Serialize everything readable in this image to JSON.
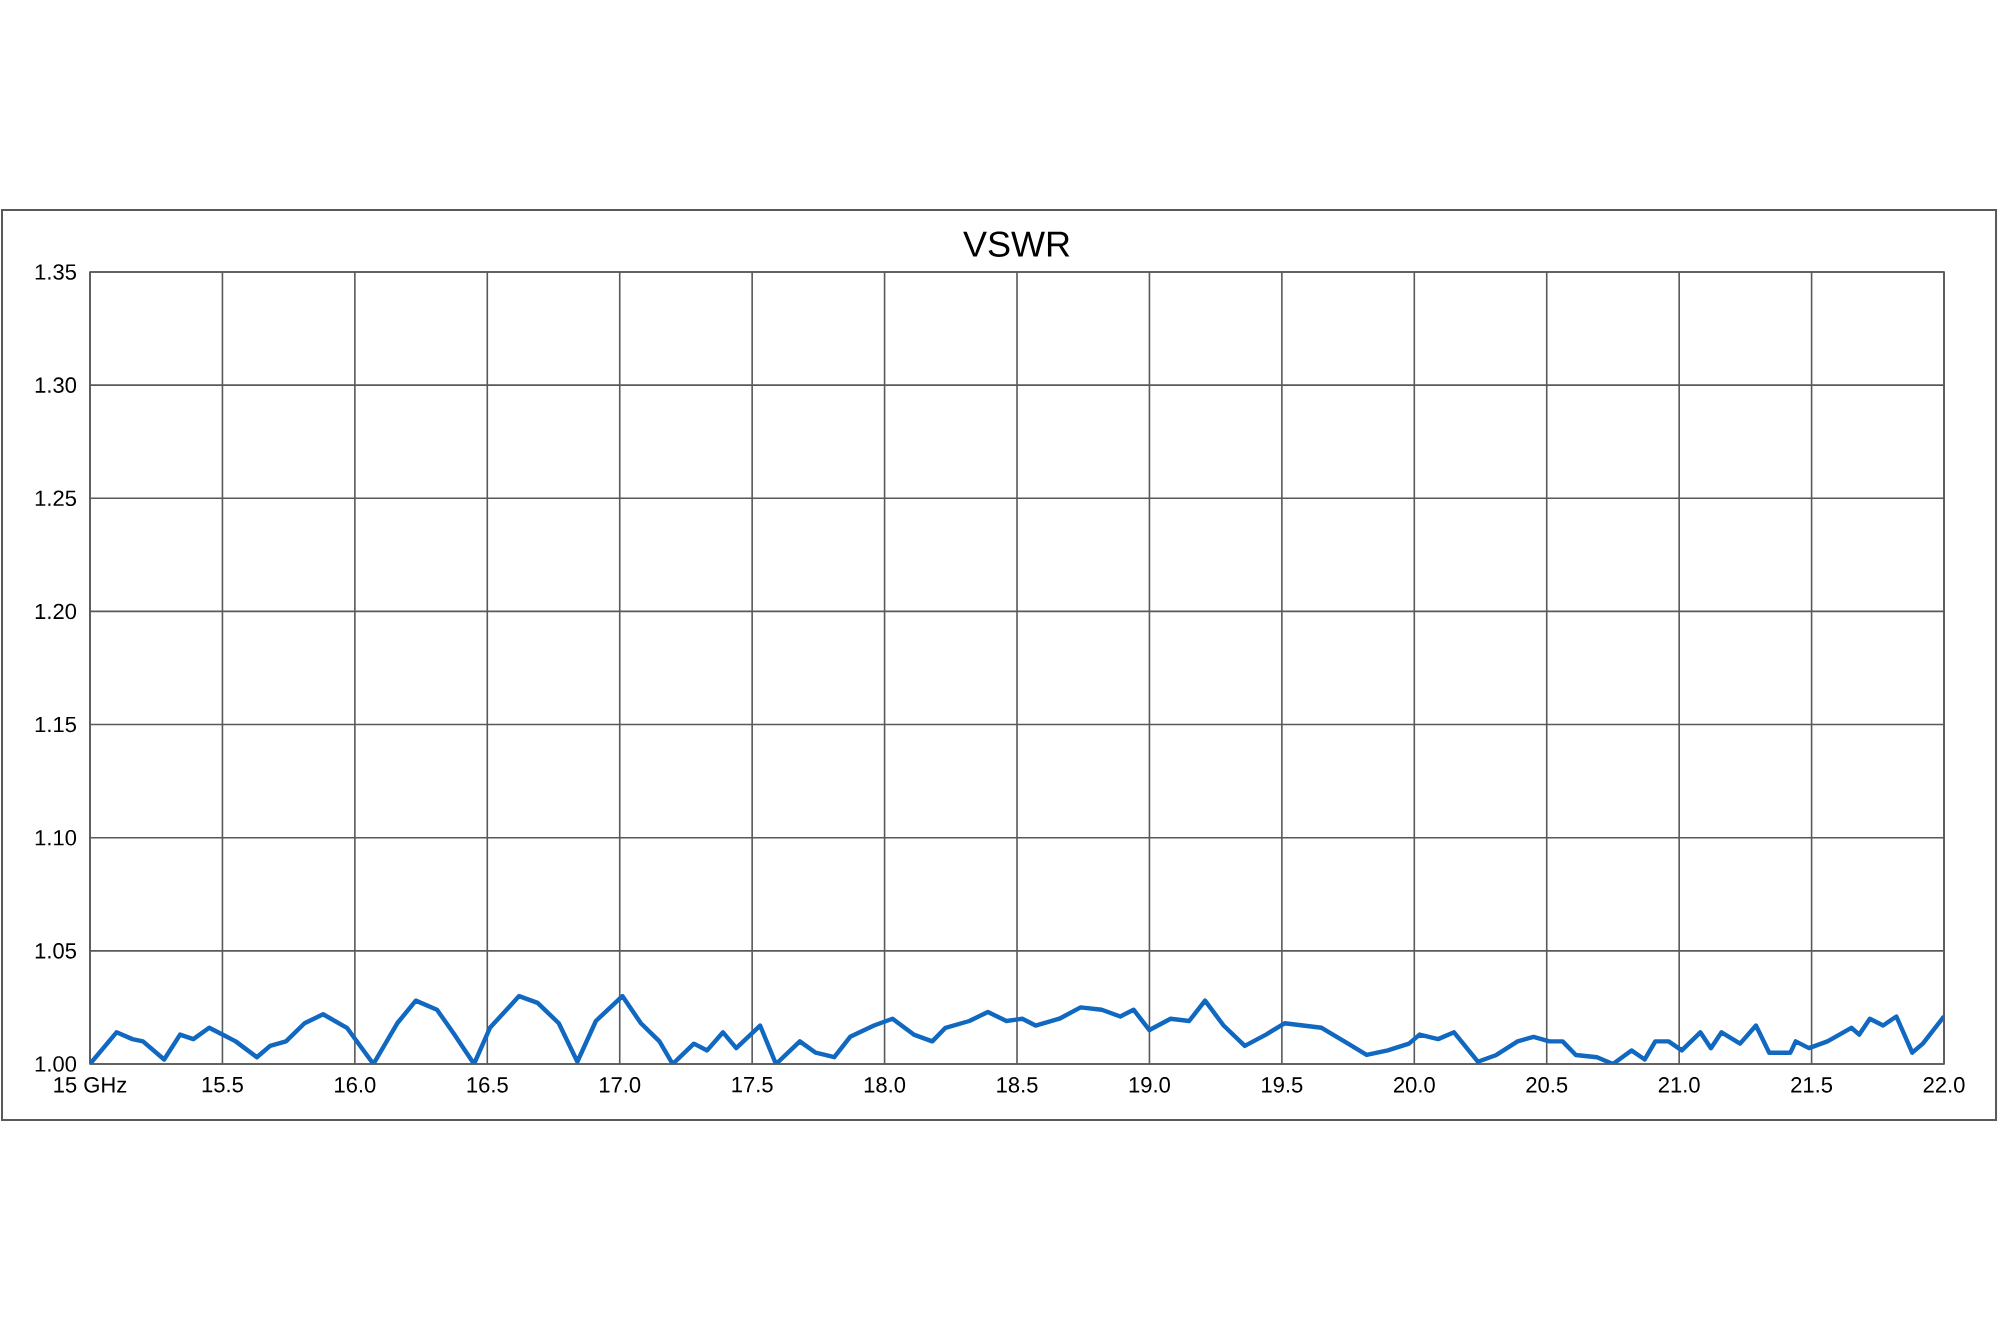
{
  "chart_data": {
    "type": "line",
    "title": "VSWR",
    "color": "#1068c0",
    "marker": "none",
    "line_style": "solid",
    "grid": true,
    "xlim": [
      15,
      22
    ],
    "ylim": [
      1.0,
      1.35
    ],
    "xticks": [
      {
        "value": 15,
        "label": "15 GHz"
      },
      {
        "value": 15.5,
        "label": "15.5"
      },
      {
        "value": 16,
        "label": "16.0"
      },
      {
        "value": 16.5,
        "label": "16.5"
      },
      {
        "value": 17,
        "label": "17.0"
      },
      {
        "value": 17.5,
        "label": "17.5"
      },
      {
        "value": 18,
        "label": "18.0"
      },
      {
        "value": 18.5,
        "label": "18.5"
      },
      {
        "value": 19,
        "label": "19.0"
      },
      {
        "value": 19.5,
        "label": "19.5"
      },
      {
        "value": 20,
        "label": "20.0"
      },
      {
        "value": 20.5,
        "label": "20.5"
      },
      {
        "value": 21,
        "label": "21.0"
      },
      {
        "value": 21.5,
        "label": "21.5"
      },
      {
        "value": 22,
        "label": "22.0"
      }
    ],
    "yticks": [
      {
        "value": 1.0,
        "label": "1.00"
      },
      {
        "value": 1.05,
        "label": "1.05"
      },
      {
        "value": 1.1,
        "label": "1.10"
      },
      {
        "value": 1.15,
        "label": "1.15"
      },
      {
        "value": 1.2,
        "label": "1.20"
      },
      {
        "value": 1.25,
        "label": "1.25"
      },
      {
        "value": 1.3,
        "label": "1.30"
      },
      {
        "value": 1.35,
        "label": "1.35"
      }
    ],
    "x": [
      15.0,
      15.1,
      15.16,
      15.2,
      15.28,
      15.34,
      15.39,
      15.45,
      15.5,
      15.55,
      15.63,
      15.68,
      15.74,
      15.81,
      15.88,
      15.97,
      16.07,
      16.16,
      16.23,
      16.31,
      16.37,
      16.45,
      16.51,
      16.62,
      16.69,
      16.77,
      16.84,
      16.91,
      17.01,
      17.08,
      17.15,
      17.2,
      17.28,
      17.33,
      17.39,
      17.44,
      17.53,
      17.59,
      17.68,
      17.74,
      17.81,
      17.87,
      17.96,
      18.03,
      18.11,
      18.18,
      18.23,
      18.32,
      18.39,
      18.46,
      18.52,
      18.57,
      18.66,
      18.74,
      18.82,
      18.89,
      18.94,
      19.0,
      19.08,
      19.15,
      19.21,
      19.28,
      19.36,
      19.44,
      19.51,
      19.65,
      19.75,
      19.82,
      19.9,
      19.98,
      20.02,
      20.09,
      20.15,
      20.24,
      20.31,
      20.39,
      20.45,
      20.51,
      20.56,
      20.61,
      20.69,
      20.75,
      20.82,
      20.87,
      20.91,
      20.96,
      21.01,
      21.08,
      21.12,
      21.16,
      21.23,
      21.29,
      21.34,
      21.42,
      21.44,
      21.49,
      21.56,
      21.65,
      21.68,
      21.72,
      21.77,
      21.82,
      21.88,
      21.92,
      22.0
    ],
    "values": [
      1.0,
      1.014,
      1.011,
      1.01,
      1.002,
      1.013,
      1.011,
      1.016,
      1.013,
      1.01,
      1.003,
      1.008,
      1.01,
      1.018,
      1.022,
      1.016,
      1.0,
      1.018,
      1.028,
      1.024,
      1.014,
      1.0,
      1.016,
      1.03,
      1.027,
      1.018,
      1.001,
      1.019,
      1.03,
      1.018,
      1.01,
      1.0,
      1.009,
      1.006,
      1.014,
      1.007,
      1.017,
      1.0,
      1.01,
      1.005,
      1.003,
      1.012,
      1.017,
      1.02,
      1.013,
      1.01,
      1.016,
      1.019,
      1.023,
      1.019,
      1.02,
      1.017,
      1.02,
      1.025,
      1.024,
      1.021,
      1.024,
      1.015,
      1.02,
      1.019,
      1.028,
      1.017,
      1.008,
      1.013,
      1.018,
      1.016,
      1.009,
      1.004,
      1.006,
      1.009,
      1.013,
      1.011,
      1.014,
      1.001,
      1.004,
      1.01,
      1.012,
      1.01,
      1.01,
      1.004,
      1.003,
      1.0,
      1.006,
      1.002,
      1.01,
      1.01,
      1.006,
      1.014,
      1.007,
      1.014,
      1.009,
      1.017,
      1.005,
      1.005,
      1.01,
      1.007,
      1.01,
      1.016,
      1.013,
      1.02,
      1.017,
      1.021,
      1.005,
      1.009,
      1.021
    ]
  }
}
